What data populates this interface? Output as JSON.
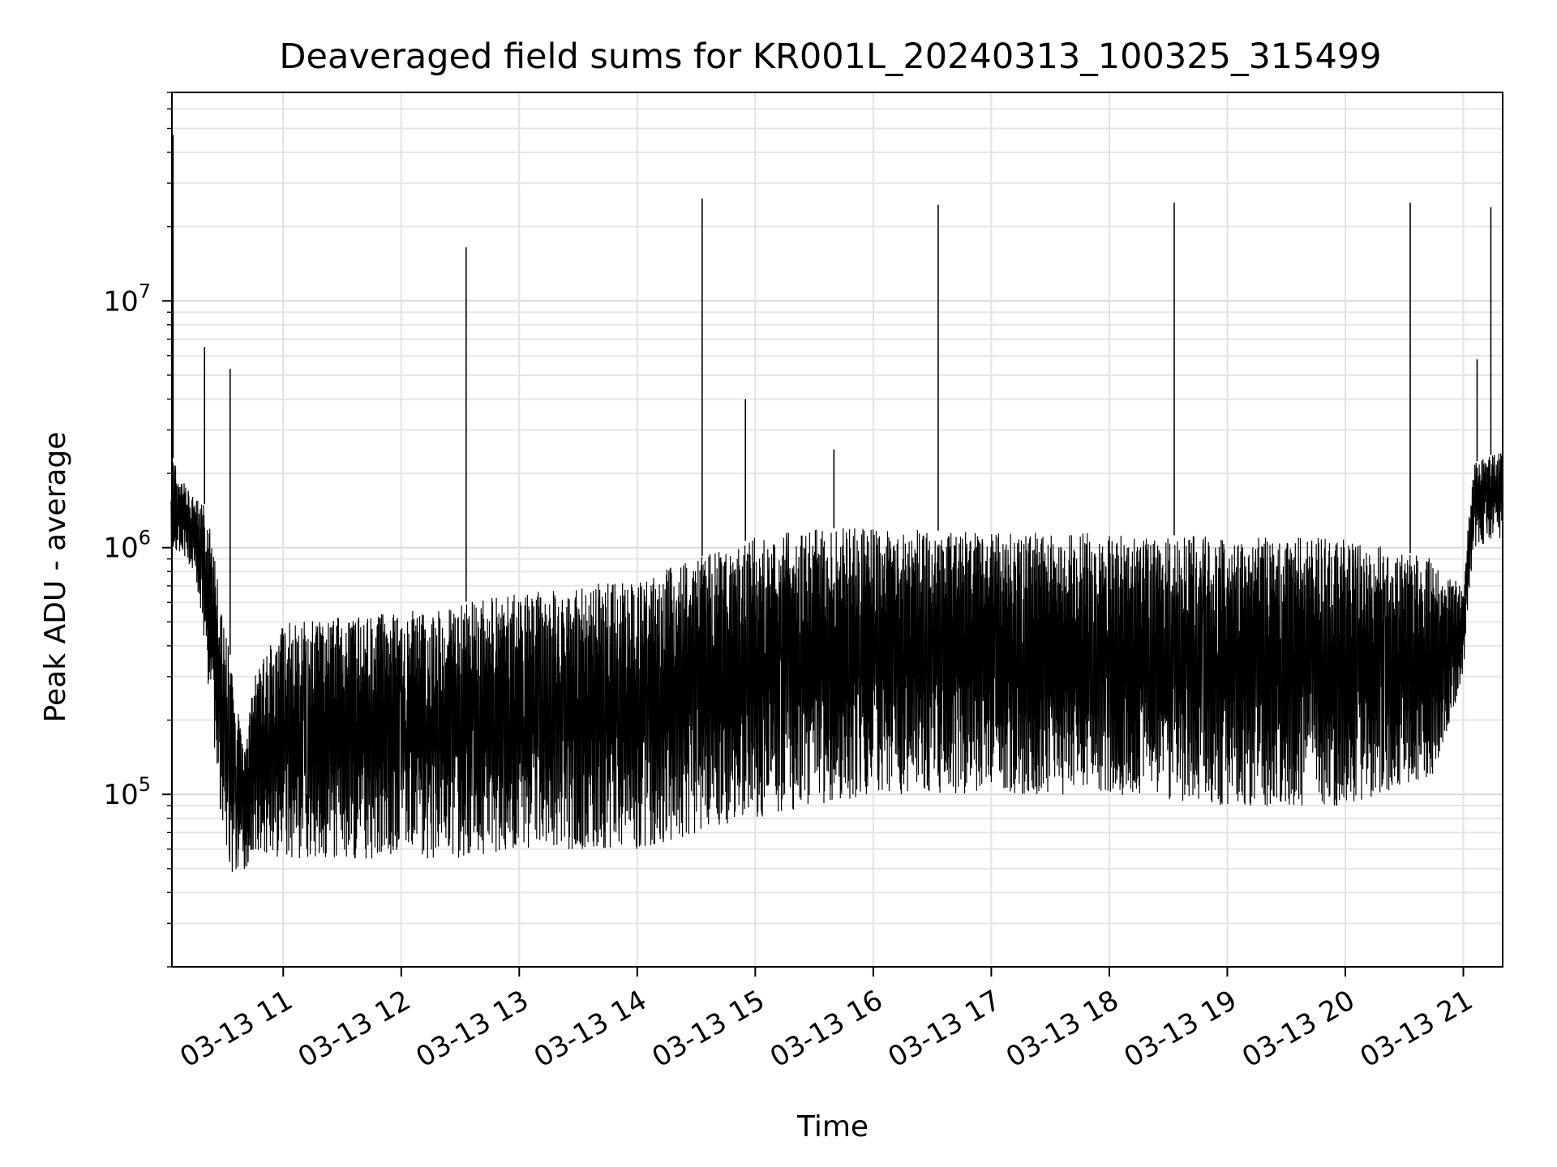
{
  "chart_data": {
    "type": "line",
    "title": "Deaveraged field sums for KR001L_20240313_100325_315499",
    "xlabel": "Time",
    "ylabel": "Peak ADU - average",
    "y_scale": "log",
    "ylim": [
      20000,
      70000000
    ],
    "xlim": [
      "2024-03-13 10:03:25",
      "2024-03-13 21:20:00"
    ],
    "x_ticks": [
      {
        "x": "2024-03-13 11:00",
        "label": "03-13 11"
      },
      {
        "x": "2024-03-13 12:00",
        "label": "03-13 12"
      },
      {
        "x": "2024-03-13 13:00",
        "label": "03-13 13"
      },
      {
        "x": "2024-03-13 14:00",
        "label": "03-13 14"
      },
      {
        "x": "2024-03-13 15:00",
        "label": "03-13 15"
      },
      {
        "x": "2024-03-13 16:00",
        "label": "03-13 16"
      },
      {
        "x": "2024-03-13 17:00",
        "label": "03-13 17"
      },
      {
        "x": "2024-03-13 18:00",
        "label": "03-13 18"
      },
      {
        "x": "2024-03-13 19:00",
        "label": "03-13 19"
      },
      {
        "x": "2024-03-13 20:00",
        "label": "03-13 20"
      },
      {
        "x": "2024-03-13 21:00",
        "label": "03-13 21"
      }
    ],
    "y_ticks": [
      {
        "value": 100000,
        "base": "10",
        "exp": "5"
      },
      {
        "value": 1000000,
        "base": "10",
        "exp": "6"
      },
      {
        "value": 10000000,
        "base": "10",
        "exp": "7"
      }
    ],
    "grid": true,
    "line_color": "#000000",
    "envelope": [
      {
        "x": "2024-03-13 10:03",
        "low": 900000,
        "high": 2400000
      },
      {
        "x": "2024-03-13 10:10",
        "low": 900000,
        "high": 1800000
      },
      {
        "x": "2024-03-13 10:15",
        "low": 800000,
        "high": 1600000
      },
      {
        "x": "2024-03-13 10:20",
        "low": 400000,
        "high": 1500000
      },
      {
        "x": "2024-03-13 10:25",
        "low": 150000,
        "high": 1000000
      },
      {
        "x": "2024-03-13 10:30",
        "low": 60000,
        "high": 500000
      },
      {
        "x": "2024-03-13 10:35",
        "low": 45000,
        "high": 300000
      },
      {
        "x": "2024-03-13 10:40",
        "low": 45000,
        "high": 150000
      },
      {
        "x": "2024-03-13 10:45",
        "low": 60000,
        "high": 300000
      },
      {
        "x": "2024-03-13 11:00",
        "low": 55000,
        "high": 500000
      },
      {
        "x": "2024-03-13 12:00",
        "low": 55000,
        "high": 550000
      },
      {
        "x": "2024-03-13 12:30",
        "low": 55000,
        "high": 600000
      },
      {
        "x": "2024-03-13 13:00",
        "low": 60000,
        "high": 650000
      },
      {
        "x": "2024-03-13 14:00",
        "low": 60000,
        "high": 750000
      },
      {
        "x": "2024-03-13 15:00",
        "low": 80000,
        "high": 1100000
      },
      {
        "x": "2024-03-13 15:30",
        "low": 90000,
        "high": 1200000
      },
      {
        "x": "2024-03-13 16:00",
        "low": 100000,
        "high": 1200000
      },
      {
        "x": "2024-03-13 17:00",
        "low": 100000,
        "high": 1150000
      },
      {
        "x": "2024-03-13 18:00",
        "low": 100000,
        "high": 1150000
      },
      {
        "x": "2024-03-13 19:00",
        "low": 90000,
        "high": 1100000
      },
      {
        "x": "2024-03-13 20:00",
        "low": 90000,
        "high": 1100000
      },
      {
        "x": "2024-03-13 20:45",
        "low": 120000,
        "high": 900000
      },
      {
        "x": "2024-03-13 21:00",
        "low": 300000,
        "high": 700000
      },
      {
        "x": "2024-03-13 21:05",
        "low": 1000000,
        "high": 2200000
      },
      {
        "x": "2024-03-13 21:20",
        "low": 1100000,
        "high": 2500000
      }
    ],
    "spikes": [
      {
        "x": "2024-03-13 10:04",
        "y": 47000000
      },
      {
        "x": "2024-03-13 10:20",
        "y": 6500000
      },
      {
        "x": "2024-03-13 10:33",
        "y": 5300000
      },
      {
        "x": "2024-03-13 12:33",
        "y": 16500000
      },
      {
        "x": "2024-03-13 14:33",
        "y": 26000000
      },
      {
        "x": "2024-03-13 14:55",
        "y": 4000000
      },
      {
        "x": "2024-03-13 15:40",
        "y": 2500000
      },
      {
        "x": "2024-03-13 16:33",
        "y": 24500000
      },
      {
        "x": "2024-03-13 18:33",
        "y": 25000000
      },
      {
        "x": "2024-03-13 20:33",
        "y": 25000000
      },
      {
        "x": "2024-03-13 21:07",
        "y": 5800000
      },
      {
        "x": "2024-03-13 21:14",
        "y": 24000000
      }
    ]
  }
}
